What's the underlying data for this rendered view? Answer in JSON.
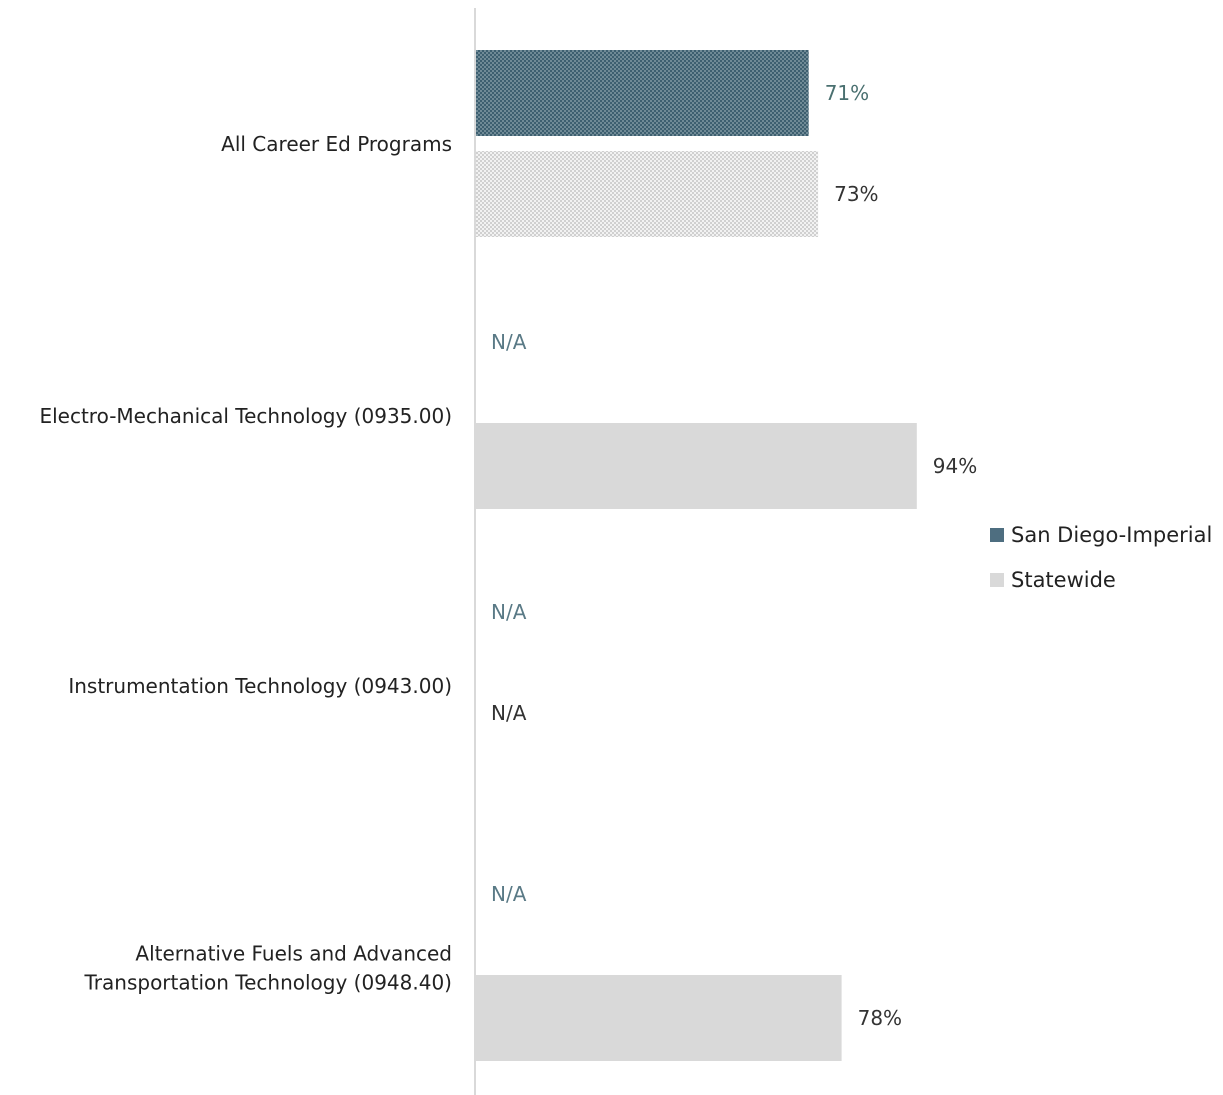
{
  "chart_data": {
    "type": "bar",
    "orientation": "horizontal",
    "categories": [
      [
        "All Career Ed Programs"
      ],
      [
        "Electro-Mechanical Technology (0935.00)"
      ],
      [
        "Instrumentation Technology (0943.00)"
      ],
      [
        "Alternative Fuels and Advanced",
        "Transportation Technology (0948.40)"
      ]
    ],
    "series": [
      {
        "name": "San Diego-Imperial",
        "values": [
          71,
          null,
          null,
          null
        ],
        "labels": [
          "71%",
          "N/A",
          "N/A",
          "N/A"
        ],
        "color": "#4e6e80",
        "label_color": "#4a7070",
        "na_color": "#5a7a86",
        "pattern": "checker"
      },
      {
        "name": "Statewide",
        "values": [
          73,
          94,
          null,
          78
        ],
        "labels": [
          "73%",
          "94%",
          "N/A",
          "78%"
        ],
        "color": "#d9d9d9",
        "label_color": "#333333",
        "na_color": "#333333",
        "pattern": [
          "checker",
          "solid",
          "solid",
          "solid"
        ]
      }
    ],
    "xlim": [
      0,
      100
    ],
    "legend": "right",
    "grid": false
  }
}
